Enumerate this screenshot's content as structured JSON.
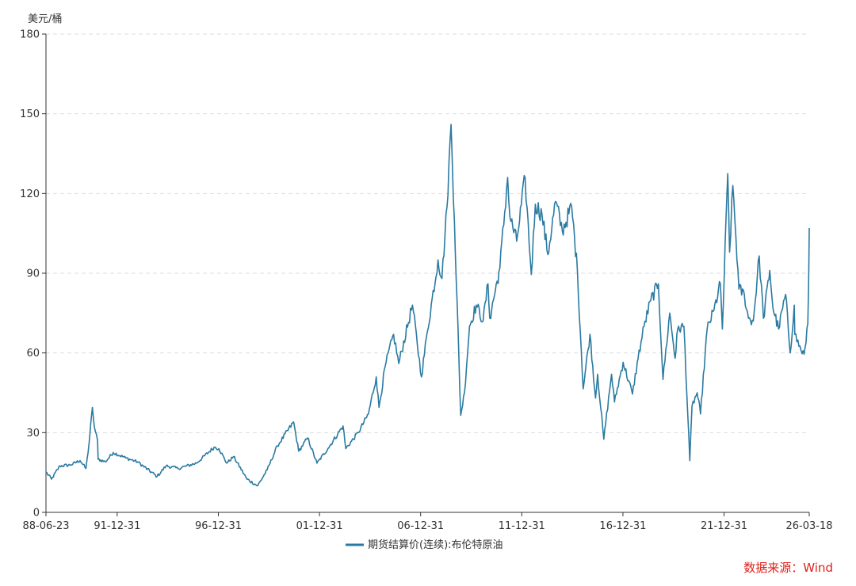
{
  "chart_data": {
    "type": "line",
    "ylabel": "美元/桶",
    "ylim": [
      0,
      180
    ],
    "yticks": [
      0,
      30,
      60,
      90,
      120,
      150,
      180
    ],
    "grid": "horizontal-dashed",
    "xlim": [
      "1988-06-23",
      "2026-03-18"
    ],
    "xticks": [
      {
        "date": "1988-06-23",
        "label": "88-06-23"
      },
      {
        "date": "1991-12-31",
        "label": "91-12-31"
      },
      {
        "date": "1996-12-31",
        "label": "96-12-31"
      },
      {
        "date": "2001-12-31",
        "label": "01-12-31"
      },
      {
        "date": "2006-12-31",
        "label": "06-12-31"
      },
      {
        "date": "2011-12-31",
        "label": "11-12-31"
      },
      {
        "date": "2016-12-31",
        "label": "16-12-31"
      },
      {
        "date": "2021-12-31",
        "label": "21-12-31"
      },
      {
        "date": "2026-03-18",
        "label": "26-03-18"
      }
    ],
    "legend_position": "bottom-center",
    "series": [
      {
        "name": "期货结算价(连续):布伦特原油",
        "color": "#2b7aa1",
        "points": [
          [
            "1988-06-23",
            15.2
          ],
          [
            "1988-10-01",
            12.5
          ],
          [
            "1989-03-01",
            17.5
          ],
          [
            "1989-09-01",
            17.8
          ],
          [
            "1990-03-01",
            19.5
          ],
          [
            "1990-06-15",
            16.5
          ],
          [
            "1990-08-10",
            26.0
          ],
          [
            "1990-10-10",
            39.5
          ],
          [
            "1990-11-15",
            32.0
          ],
          [
            "1991-01-10",
            27.0
          ],
          [
            "1991-01-20",
            20.0
          ],
          [
            "1991-06-01",
            19.0
          ],
          [
            "1991-10-20",
            22.5
          ],
          [
            "1992-06-01",
            20.5
          ],
          [
            "1993-01-01",
            19.0
          ],
          [
            "1993-12-20",
            13.5
          ],
          [
            "1994-06-01",
            17.5
          ],
          [
            "1995-01-01",
            16.5
          ],
          [
            "1995-12-01",
            18.5
          ],
          [
            "1996-10-15",
            24.5
          ],
          [
            "1997-01-10",
            24.0
          ],
          [
            "1997-06-01",
            18.5
          ],
          [
            "1997-10-01",
            21.0
          ],
          [
            "1998-06-01",
            12.5
          ],
          [
            "1998-12-10",
            10.0
          ],
          [
            "1999-06-01",
            16.0
          ],
          [
            "1999-12-01",
            25.0
          ],
          [
            "2000-09-20",
            34.0
          ],
          [
            "2000-12-20",
            23.0
          ],
          [
            "2001-06-01",
            28.0
          ],
          [
            "2001-11-15",
            18.5
          ],
          [
            "2002-06-01",
            24.0
          ],
          [
            "2003-03-01",
            32.5
          ],
          [
            "2003-04-20",
            24.0
          ],
          [
            "2003-12-01",
            30.0
          ],
          [
            "2004-06-01",
            37.0
          ],
          [
            "2004-10-20",
            51.0
          ],
          [
            "2004-12-10",
            39.5
          ],
          [
            "2005-04-01",
            55.0
          ],
          [
            "2005-08-30",
            67.0
          ],
          [
            "2005-12-01",
            56.0
          ],
          [
            "2006-08-05",
            78.0
          ],
          [
            "2007-01-15",
            51.0
          ],
          [
            "2007-05-01",
            68.0
          ],
          [
            "2007-11-10",
            95.0
          ],
          [
            "2008-01-20",
            88.0
          ],
          [
            "2008-04-20",
            115.0
          ],
          [
            "2008-07-03",
            146.0
          ],
          [
            "2008-09-01",
            110.0
          ],
          [
            "2008-12-24",
            36.5
          ],
          [
            "2009-03-01",
            45.0
          ],
          [
            "2009-06-01",
            70.0
          ],
          [
            "2009-10-01",
            78.0
          ],
          [
            "2010-02-01",
            72.0
          ],
          [
            "2010-05-01",
            86.0
          ],
          [
            "2010-06-01",
            73.0
          ],
          [
            "2010-12-01",
            92.0
          ],
          [
            "2011-04-20",
            126.0
          ],
          [
            "2011-06-01",
            111.0
          ],
          [
            "2011-10-01",
            102.0
          ],
          [
            "2012-03-01",
            126.0
          ],
          [
            "2012-06-20",
            89.5
          ],
          [
            "2012-09-01",
            116.0
          ],
          [
            "2013-01-01",
            112.0
          ],
          [
            "2013-04-15",
            97.0
          ],
          [
            "2013-09-01",
            117.0
          ],
          [
            "2014-01-01",
            106.0
          ],
          [
            "2014-06-20",
            115.0
          ],
          [
            "2014-10-01",
            91.0
          ],
          [
            "2015-01-13",
            46.5
          ],
          [
            "2015-05-15",
            67.0
          ],
          [
            "2015-08-24",
            43.0
          ],
          [
            "2015-10-01",
            52.0
          ],
          [
            "2016-01-20",
            27.5
          ],
          [
            "2016-06-08",
            52.0
          ],
          [
            "2016-08-01",
            41.5
          ],
          [
            "2017-01-03",
            56.5
          ],
          [
            "2017-06-21",
            44.5
          ],
          [
            "2017-10-01",
            58.0
          ],
          [
            "2018-01-15",
            70.0
          ],
          [
            "2018-05-20",
            80.0
          ],
          [
            "2018-10-03",
            86.0
          ],
          [
            "2018-12-24",
            50.0
          ],
          [
            "2019-04-25",
            75.0
          ],
          [
            "2019-08-01",
            58.0
          ],
          [
            "2019-09-16",
            69.0
          ],
          [
            "2020-01-07",
            70.0
          ],
          [
            "2020-04-21",
            19.5
          ],
          [
            "2020-06-01",
            40.0
          ],
          [
            "2020-09-01",
            45.0
          ],
          [
            "2020-11-01",
            37.0
          ],
          [
            "2021-03-01",
            69.0
          ],
          [
            "2021-07-01",
            76.0
          ],
          [
            "2021-10-25",
            86.0
          ],
          [
            "2021-12-01",
            69.0
          ],
          [
            "2022-03-08",
            127.5
          ],
          [
            "2022-04-10",
            98.0
          ],
          [
            "2022-06-08",
            123.0
          ],
          [
            "2022-09-26",
            84.0
          ],
          [
            "2023-01-01",
            82.0
          ],
          [
            "2023-03-17",
            73.0
          ],
          [
            "2023-06-12",
            72.0
          ],
          [
            "2023-09-27",
            96.5
          ],
          [
            "2023-12-12",
            73.0
          ],
          [
            "2024-04-05",
            91.0
          ],
          [
            "2024-06-01",
            77.0
          ],
          [
            "2024-09-10",
            69.0
          ],
          [
            "2025-01-15",
            82.0
          ],
          [
            "2025-04-09",
            60.0
          ],
          [
            "2025-06-20",
            78.0
          ],
          [
            "2025-07-01",
            67.0
          ],
          [
            "2025-10-20",
            61.0
          ],
          [
            "2025-12-15",
            59.5
          ],
          [
            "2026-01-20",
            64.0
          ],
          [
            "2026-02-20",
            71.0
          ],
          [
            "2026-03-05",
            84.0
          ],
          [
            "2026-03-12",
            95.0
          ],
          [
            "2026-03-18",
            107.0
          ]
        ]
      }
    ]
  },
  "source": "数据来源：Wind"
}
